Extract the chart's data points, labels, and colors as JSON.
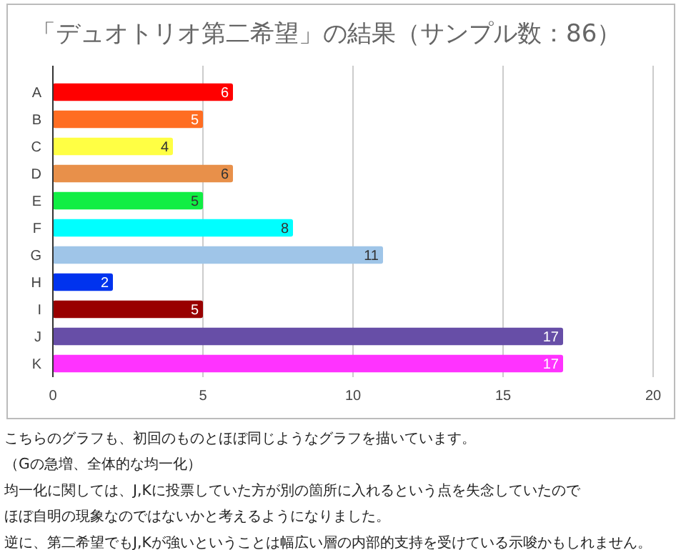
{
  "chart_data": {
    "type": "bar",
    "orientation": "horizontal",
    "title": "「デュオトリオ第二希望」の結果（サンプル数：86）",
    "categories": [
      "A",
      "B",
      "C",
      "D",
      "E",
      "F",
      "G",
      "H",
      "I",
      "J",
      "K"
    ],
    "values": [
      6,
      5,
      4,
      6,
      5,
      8,
      11,
      2,
      5,
      17,
      17
    ],
    "colors": [
      "#ff0000",
      "#ff6d22",
      "#ffff44",
      "#e8904a",
      "#11ee44",
      "#00ffff",
      "#9fc5e8",
      "#0033ee",
      "#990000",
      "#674ea7",
      "#ff33ff"
    ],
    "xlim": [
      0,
      20
    ],
    "xticks": [
      0,
      5,
      10,
      15,
      20
    ],
    "grid": "x",
    "data_labels": true,
    "annotations": [
      "こちらのグラフも、初回のものとほぼ同じようなグラフを描いています。",
      "（Gの急増、全体的な均一化）",
      "均一化に関しては、J,Kに投票していた方が別の箇所に入れるという点を失念していたので",
      "ほぼ自明の現象なのではないかと考えるようになりました。",
      "逆に、第二希望でもJ,Kが強いということは幅広い層の内部的支持を受けている示唆かもしれません。"
    ]
  }
}
